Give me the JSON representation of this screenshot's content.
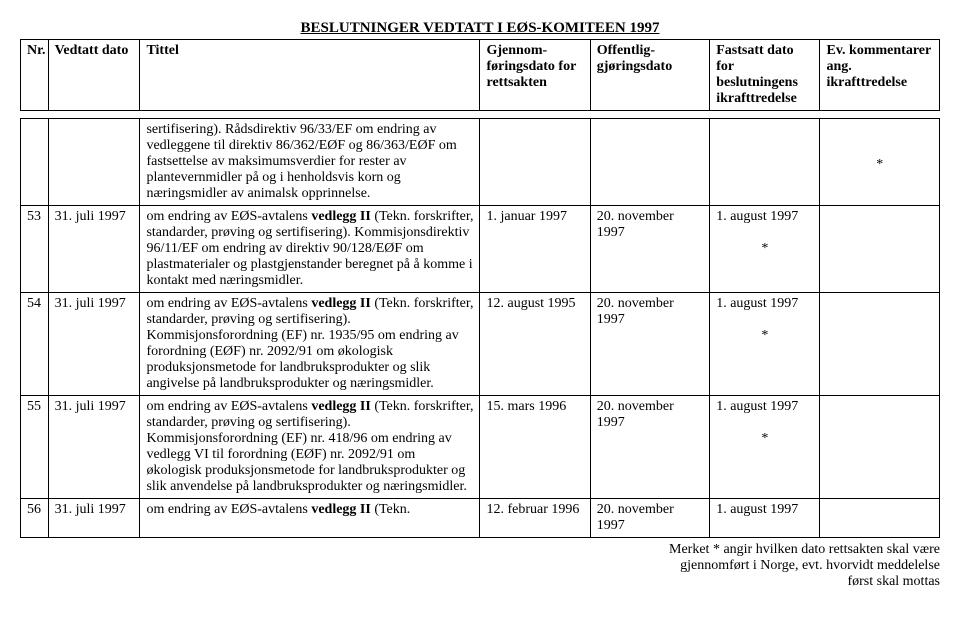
{
  "page_title": "BESLUTNINGER VEDTATT I EØS-KOMITEEN 1997",
  "headers": {
    "nr": "Nr.",
    "vedtatt": "Vedtatt dato",
    "tittel": "Tittel",
    "gf": "Gjennom-føringsdato for rettsakten",
    "og": "Offentlig-gjøringsdato",
    "fd": "Fastsatt dato for beslutningens ikrafttredelse",
    "ev": "Ev. kommentarer ang. ikrafttredelse"
  },
  "rows": [
    {
      "nr": "",
      "vedtatt": "",
      "tittel": "sertifisering). Rådsdirektiv 96/33/EF om endring av vedleggene til direktiv 86/362/EØF og 86/363/EØF om fastsettelse av maksimumsverdier for rester av plantevernmidler på og i henholdsvis korn og næringsmidler av animalsk opprinnelse.",
      "gf": "",
      "og": "",
      "fd": "",
      "ev": "*"
    },
    {
      "nr": "53",
      "vedtatt": "31. juli 1997",
      "tittel": "om endring av EØS-avtalens vedlegg II (Tekn. forskrifter, standarder, prøving og sertifisering). Kommisjonsdirektiv 96/11/EF om endring av direktiv 90/128/EØF om plastmaterialer og plastgjenstander beregnet på å komme i kontakt med næringsmidler.",
      "gf": "1. januar 1997",
      "og": "20. november 1997",
      "fd": "1. august 1997",
      "ev": "*"
    },
    {
      "nr": "54",
      "vedtatt": "31. juli 1997",
      "tittel": "om endring av EØS-avtalens vedlegg II (Tekn. forskrifter, standarder, prøving og sertifisering). Kommisjonsforordning (EF) nr. 1935/95 om endring av forordning (EØF) nr. 2092/91 om økologisk produksjonsmetode for landbruksprodukter og slik angivelse på landbruksprodukter og næringsmidler.",
      "gf": "12. august 1995",
      "og": "20. november 1997",
      "fd": "1. august 1997",
      "ev": "*"
    },
    {
      "nr": "55",
      "vedtatt": "31. juli 1997",
      "tittel": "om endring av EØS-avtalens vedlegg II (Tekn. forskrifter, standarder, prøving og sertifisering). Kommisjonsforordning (EF) nr. 418/96 om endring av vedlegg VI til forordning (EØF) nr. 2092/91 om økologisk produksjonsmetode for landbruksprodukter og slik anvendelse på landbruksprodukter og næringsmidler.",
      "gf": "15. mars 1996",
      "og": "20. november 1997",
      "fd": "1. august 1997",
      "ev": "*"
    },
    {
      "nr": "56",
      "vedtatt": "31. juli 1997",
      "tittel": "om endring av EØS-avtalens vedlegg II (Tekn.",
      "gf": "12. februar 1996",
      "og": "20. november 1997",
      "fd": "1. august 1997",
      "ev": ""
    }
  ],
  "footnote_line1": "Merket * angir hvilken dato rettsakten skal være",
  "footnote_line2": "gjennomført i Norge, evt. hvorvidt meddelelse",
  "footnote_line3": "først skal mottas"
}
